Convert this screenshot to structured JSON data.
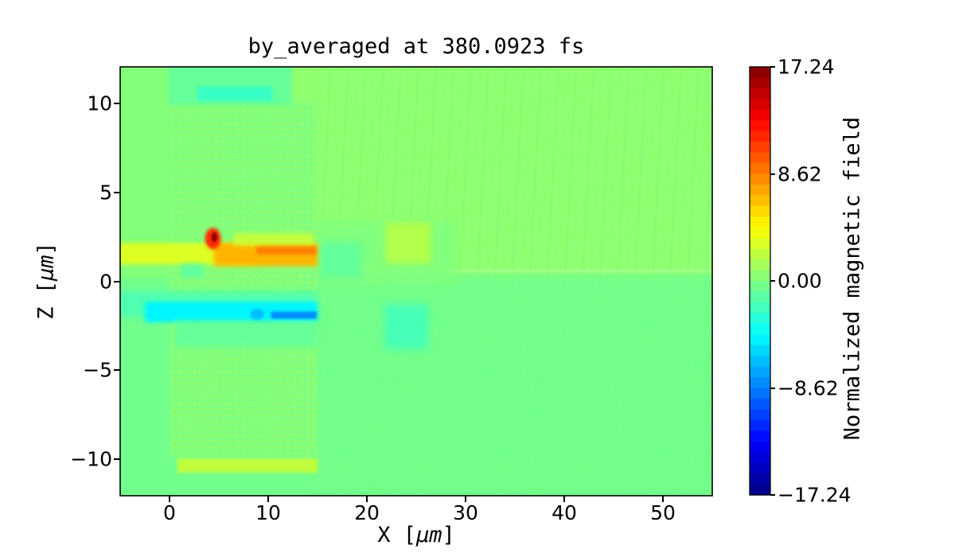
{
  "palette": {
    "figure_background": "#ffffff",
    "axis_color": "#000000",
    "streak_upper": "#66fb8e",
    "streak_lower": "#7dfb70",
    "speckle_dot1": "#a9f75d",
    "speckle_dot2": "#58f0a6"
  },
  "chart_data": {
    "type": "heatmap",
    "title": "by_averaged at 380.0923 fs",
    "xlabel": "X [μm]",
    "ylabel": "Z [μm]",
    "xlabel_parts": {
      "pre": "X [",
      "italic": "μm",
      "post": "]"
    },
    "ylabel_parts": {
      "pre": "Z [",
      "italic": "μm",
      "post": "]"
    },
    "xlim": [
      -5,
      55
    ],
    "ylim": [
      -12.05,
      12.05
    ],
    "xticks": {
      "values": [
        0,
        10,
        20,
        30,
        40,
        50
      ],
      "labels": [
        "0",
        "10",
        "20",
        "30",
        "40",
        "50"
      ]
    },
    "yticks": {
      "values": [
        10,
        5,
        0,
        -5,
        -10
      ],
      "labels": [
        "10",
        "5",
        "0",
        "−5",
        "−10"
      ]
    },
    "grid": false,
    "colorbar": {
      "label": "Normalized magnetic field",
      "vmin": -17.24,
      "vmax": 17.24,
      "ticks": {
        "values": [
          17.24,
          8.62,
          0,
          -8.62,
          -17.24
        ],
        "labels": [
          "17.24",
          "8.62",
          "0.00",
          "−8.62",
          "−17.24"
        ]
      },
      "colormap": "jet",
      "colormap_stops": [
        [
          0,
          [
            0,
            0,
            128
          ]
        ],
        [
          0.125,
          [
            0,
            0,
            255
          ]
        ],
        [
          0.375,
          [
            0,
            255,
            255
          ]
        ],
        [
          0.625,
          [
            255,
            255,
            0
          ]
        ],
        [
          0.875,
          [
            255,
            0,
            0
          ]
        ],
        [
          1,
          [
            128,
            0,
            0
          ]
        ]
      ],
      "steps": 40
    },
    "features": [
      {
        "shape": "rect",
        "name": "bg-lower-green",
        "x": [
          -6,
          56
        ],
        "z": [
          -12.6,
          0.5
        ],
        "v": -0.45,
        "blur": 0
      },
      {
        "shape": "rect",
        "name": "bg-upper-yellowgreen",
        "x": [
          -6,
          56
        ],
        "z": [
          0.35,
          12.6
        ],
        "v": 0.55,
        "blur": 5
      },
      {
        "shape": "rect",
        "name": "streaks-upper-right",
        "x": [
          14.5,
          56
        ],
        "z": [
          -0.2,
          12.6
        ],
        "pattern": "streakU",
        "opacity": 0.5
      },
      {
        "shape": "rect",
        "name": "streaks-lower-right",
        "x": [
          14,
          56
        ],
        "z": [
          -12.6,
          0.3
        ],
        "pattern": "streakL",
        "opacity": 0.7
      },
      {
        "shape": "rect",
        "name": "mid-green-patch",
        "x": [
          15,
          29
        ],
        "z": [
          -0.2,
          3.4
        ],
        "v": 0.05,
        "blur": 6,
        "opacity": 0.9
      },
      {
        "shape": "rect",
        "name": "teal-patch-right-of-target",
        "x": [
          15.2,
          19.5
        ],
        "z": [
          0.2,
          2.2
        ],
        "v": -1.3,
        "blur": 5,
        "opacity": 0.75
      },
      {
        "shape": "rect",
        "name": "cyan-blob-right",
        "x": [
          21.8,
          26.2
        ],
        "z": [
          -3.8,
          -1.3
        ],
        "v": -2.3,
        "blur": 5,
        "opacity": 0.8
      },
      {
        "shape": "rect",
        "name": "yellow-patch-mid",
        "x": [
          21.9,
          26.5
        ],
        "z": [
          1.0,
          3.3
        ],
        "v": 2.6,
        "blur": 4,
        "opacity": 0.65
      },
      {
        "shape": "rect",
        "name": "left-margin-green",
        "x": [
          -6,
          0.1
        ],
        "z": [
          0.3,
          12.6
        ],
        "v": 0.1,
        "blur": 3,
        "opacity": 0.9
      },
      {
        "shape": "rect",
        "name": "target-base",
        "x": [
          0,
          15
        ],
        "z": [
          -9.8,
          10.0
        ],
        "v": 0.1,
        "blur": 2
      },
      {
        "shape": "rect",
        "name": "target-speckle-texture",
        "x": [
          0,
          15
        ],
        "z": [
          -9.8,
          10.0
        ],
        "pattern": "speckle",
        "opacity": 0.9
      },
      {
        "shape": "rect",
        "name": "target-top-band",
        "x": [
          -0.1,
          12.4
        ],
        "z": [
          9.9,
          12.6
        ],
        "v": -0.85,
        "blur": 2
      },
      {
        "shape": "rect",
        "name": "target-top-teal-streak",
        "x": [
          2.8,
          10.4
        ],
        "z": [
          10.15,
          10.95
        ],
        "v": -2.4,
        "blur": 2
      },
      {
        "shape": "rect",
        "name": "target-bottom-yellow-band",
        "x": [
          0.8,
          15
        ],
        "z": [
          -10.75,
          -9.95
        ],
        "v": 2.2,
        "blur": 2
      },
      {
        "shape": "rect",
        "name": "positive-band",
        "x": [
          -5.5,
          9
        ],
        "z": [
          0.95,
          2.15
        ],
        "v": 3.2,
        "blur": 3
      },
      {
        "shape": "rect",
        "name": "positive-band-core",
        "x": [
          4.5,
          15
        ],
        "z": [
          0.85,
          2.15
        ],
        "v": 6.8,
        "blur": 3
      },
      {
        "shape": "rect",
        "name": "positive-band-wisps",
        "x": [
          6.5,
          14.6
        ],
        "z": [
          2.0,
          2.7
        ],
        "v": 2.8,
        "blur": 3,
        "opacity": 0.8
      },
      {
        "shape": "rect",
        "name": "orange-streak",
        "x": [
          8.8,
          14.9
        ],
        "z": [
          1.5,
          1.95
        ],
        "v": 9,
        "blur": 2,
        "opacity": 0.85
      },
      {
        "shape": "rect",
        "name": "cyan-dip-left",
        "x": [
          1.2,
          3.4
        ],
        "z": [
          0.2,
          1.0
        ],
        "v": -1.5,
        "blur": 3,
        "opacity": 0.7
      },
      {
        "shape": "ellipse",
        "name": "hot-spot-halo",
        "x": [
          3.6,
          5.2
        ],
        "z": [
          1.8,
          3.0
        ],
        "v": 11.5,
        "blur": 2
      },
      {
        "shape": "ellipse",
        "name": "hot-spot-core",
        "x": [
          4.25,
          4.85
        ],
        "z": [
          2.2,
          2.75
        ],
        "v": 16.5,
        "blur": 1
      },
      {
        "shape": "rect",
        "name": "negative-band",
        "x": [
          -5.5,
          15
        ],
        "z": [
          -2.0,
          -0.55
        ],
        "v": -1.6,
        "blur": 4
      },
      {
        "shape": "rect",
        "name": "negative-band-core",
        "x": [
          -2.5,
          15
        ],
        "z": [
          -2.3,
          -1.15
        ],
        "v": -4.6,
        "blur": 3
      },
      {
        "shape": "rect",
        "name": "negative-band-tail",
        "x": [
          0.5,
          15
        ],
        "z": [
          -3.7,
          -2.2
        ],
        "v": -1.3,
        "blur": 4,
        "opacity": 0.7
      },
      {
        "shape": "rect",
        "name": "blue-streak",
        "x": [
          10.3,
          14.9
        ],
        "z": [
          -2.1,
          -1.7
        ],
        "v": -8.2,
        "blur": 1.5
      },
      {
        "shape": "ellipse",
        "name": "blue-blob",
        "x": [
          8.2,
          9.6
        ],
        "z": [
          -2.15,
          -1.55
        ],
        "v": -6.5,
        "blur": 1.5
      }
    ]
  }
}
